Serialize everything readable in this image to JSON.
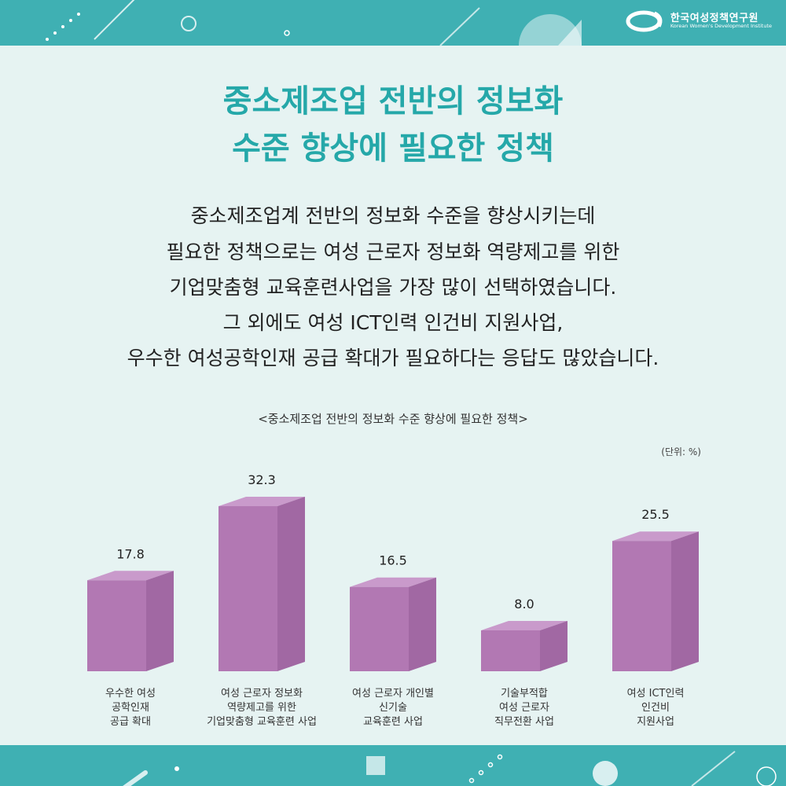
{
  "header": {
    "logo_korean": "한국여성정책연구원",
    "logo_english": "Korean Women's Development Institute"
  },
  "title_lines": [
    "중소제조업 전반의 정보화",
    "수준 향상에 필요한 정책"
  ],
  "description_lines": [
    "중소제조업계 전반의 정보화 수준을 향상시키는데",
    "필요한 정책으로는 여성 근로자 정보화 역량제고를 위한",
    "기업맞춤형 교육훈련사업을 가장 많이 선택하였습니다.",
    "그 외에도 여성 ICT인력 인건비 지원사업,",
    "우수한 여성공학인재 공급 확대가 필요하다는 응답도 많았습니다."
  ],
  "colors": {
    "band": "#3fb0b3",
    "background": "#e6f3f2",
    "title": "#25a8a9",
    "bar_front": "#b278b3",
    "bar_side": "#a168a3",
    "bar_top": "#c99acb"
  },
  "chart_data": {
    "type": "bar",
    "title": "<중소제조업 전반의 정보화 수준 향상에 필요한 정책>",
    "unit": "(단위: %)",
    "categories": [
      [
        "우수한 여성",
        "공학인재",
        "공급 확대"
      ],
      [
        "여성 근로자 정보화",
        "역량제고를 위한",
        "기업맞춤형 교육훈련 사업"
      ],
      [
        "여성 근로자 개인별",
        "신기술",
        "교육훈련 사업"
      ],
      [
        "기술부적합",
        "여성 근로자",
        "직무전환 사업"
      ],
      [
        "여성 ICT인력",
        "인건비",
        "지원사업"
      ]
    ],
    "values": [
      17.8,
      32.3,
      16.5,
      8.0,
      25.5
    ],
    "value_labels": [
      "17.8",
      "32.3",
      "16.5",
      "8.0",
      "25.5"
    ],
    "ylim": [
      0,
      32.3
    ],
    "grid": false,
    "legend": "none"
  }
}
